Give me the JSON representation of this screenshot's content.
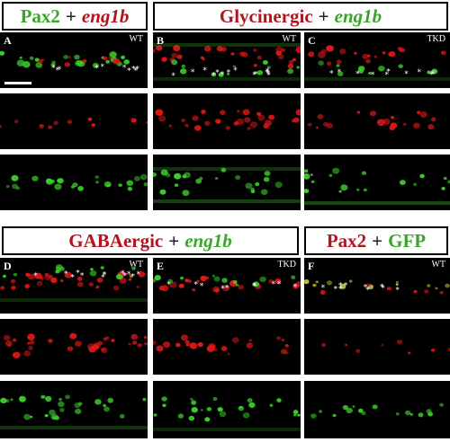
{
  "headers": [
    {
      "id": "h1",
      "left": "Pax2",
      "plus": "+",
      "right": "eng1b",
      "left_color": "green",
      "right_color": "red"
    },
    {
      "id": "h2",
      "left": "Glycinergic",
      "plus": "+",
      "right": "eng1b",
      "left_color": "red",
      "right_color": "green"
    },
    {
      "id": "h3",
      "left": "GABAergic",
      "plus": "+",
      "right": "eng1b",
      "left_color": "red",
      "right_color": "green"
    },
    {
      "id": "h4",
      "left": "Pax2",
      "plus": "+",
      "right": "GFP",
      "left_color": "red",
      "right_color": "green"
    }
  ],
  "panels": {
    "A": {
      "label": "A",
      "cond": "WT"
    },
    "B": {
      "label": "B",
      "cond": "WT"
    },
    "C": {
      "label": "C",
      "cond": "TKD"
    },
    "D": {
      "label": "D",
      "cond": "WT"
    },
    "E": {
      "label": "E",
      "cond": "TKD"
    },
    "F": {
      "label": "F",
      "cond": "WT"
    }
  },
  "colors": {
    "green": "#3aa52a",
    "red": "#b3141e",
    "bg": "#000000"
  }
}
